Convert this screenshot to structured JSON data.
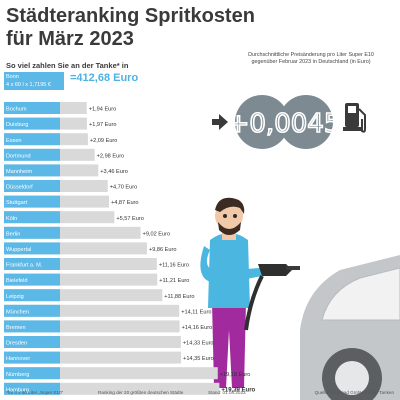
{
  "header": {
    "title_line1": "Städteranking Spritkosten",
    "title_line2": "für März 2023",
    "subtitle": "So viel zahlen Sie an der Tanke* in"
  },
  "reference": {
    "city": "Bonn",
    "formula": "4 x 60 l x 1,7195 €",
    "value": "=412,68 Euro"
  },
  "price_change": {
    "description": "Durchschnittliche Preisänderung pro Liter Super E10 gegenüber Februar 2023 in Deutschland (in Euro)",
    "value": "+0,0045"
  },
  "colors": {
    "accent": "#5cb8e6",
    "bar": "#d9d9d9",
    "label_bg": "#5cb8e6",
    "coin": "#7d8a92",
    "person_shirt": "#4bb6df",
    "person_pants": "#a02a9e"
  },
  "chart_data": {
    "type": "bar",
    "orientation": "horizontal",
    "categories": [
      "Bochum",
      "Duisburg",
      "Essen",
      "Dortmund",
      "Mannheim",
      "Düsseldorf",
      "Stuttgart",
      "Köln",
      "Berlin",
      "Wuppertal",
      "Frankfurt a. M.",
      "Bielefeld",
      "Leipzig",
      "München",
      "Bremen",
      "Dresden",
      "Hannover",
      "Nürnberg",
      "Hamburg"
    ],
    "values": [
      1.94,
      1.97,
      2.09,
      2.98,
      3.46,
      4.7,
      4.87,
      5.57,
      9.02,
      9.86,
      11.16,
      11.21,
      11.88,
      14.11,
      14.16,
      14.33,
      14.35,
      19.18,
      19.39
    ],
    "value_labels": [
      "+1,94 Euro",
      "+1,97 Euro",
      "+2,09 Euro",
      "+2,98 Euro",
      "+3,46 Euro",
      "+4,70 Euro",
      "+4,87 Euro",
      "+5,57 Euro",
      "+9,02 Euro",
      "+9,86 Euro",
      "+11,16 Euro",
      "+11,21 Euro",
      "+11,88 Euro",
      "+14,11 Euro",
      "+14,16 Euro",
      "+14,33 Euro",
      "+14,35 Euro",
      "+19,18 Euro",
      "+19,39 Euro"
    ],
    "unit": "Euro",
    "highlight": [
      "Hamburg"
    ]
  },
  "footer": {
    "note": "*für 4 x 60 Liter „Super E10“",
    "ranking": "Ranking der 20 größten deutschen Städte",
    "date": "Stand: 01.04.2023",
    "source": "Quelle: infoRoad GmbH/Clever Tanken"
  },
  "icons": [
    "fuel-pump-icon",
    "arrow-right-icon"
  ]
}
